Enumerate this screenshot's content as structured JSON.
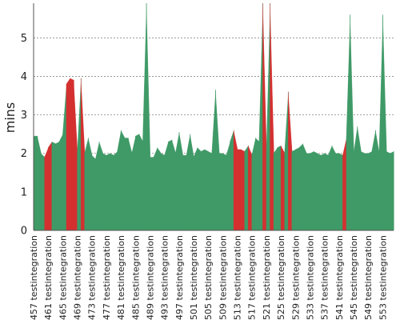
{
  "chart_data": {
    "type": "area",
    "title": "",
    "xlabel": "",
    "ylabel": "mins",
    "ylim": [
      0,
      5.9
    ],
    "yticks": [
      0,
      1,
      2,
      3,
      4,
      5
    ],
    "grid": true,
    "legend": "none",
    "colors": {
      "success": "#3f9a67",
      "failure": "#d43030",
      "axis": "#555555",
      "grid": "#888888"
    },
    "x_labels": [
      "#457 testintegration",
      "#461 testintegration",
      "#465 testintegration",
      "#469 testintegration",
      "#473 testintegration",
      "#477 testintegration",
      "#481 testintegration",
      "#485 testintegration",
      "#489 testintegration",
      "#493 testintegration",
      "#497 testintegration",
      "#501 testintegration",
      "#505 testintegration",
      "#509 testintegration",
      "#513 testintegration",
      "#517 testintegration",
      "#521 testintegration",
      "#525 testintegration",
      "#529 testintegration",
      "#533 testintegration",
      "#537 testintegration",
      "#541 testintegration",
      "#545 testintegration",
      "#549 testintegration",
      "#553 testintegration"
    ],
    "builds": [
      457,
      458,
      459,
      460,
      461,
      462,
      463,
      464,
      465,
      466,
      467,
      468,
      469,
      470,
      471,
      472,
      473,
      474,
      475,
      476,
      477,
      478,
      479,
      480,
      481,
      482,
      483,
      484,
      485,
      486,
      487,
      488,
      489,
      490,
      491,
      492,
      493,
      494,
      495,
      496,
      497,
      498,
      499,
      500,
      501,
      502,
      503,
      504,
      505,
      506,
      507,
      508,
      509,
      510,
      511,
      512,
      513,
      514,
      515,
      516,
      517,
      518,
      519,
      520,
      521,
      522,
      523,
      524,
      525,
      526,
      527,
      528,
      529,
      530,
      531,
      532,
      533,
      534,
      535,
      536,
      537,
      538,
      539,
      540,
      541,
      542,
      543,
      544,
      545,
      546,
      547,
      548,
      549,
      550,
      551,
      552,
      553,
      554,
      555,
      556
    ],
    "values": [
      2.45,
      2.45,
      2.0,
      1.9,
      2.15,
      2.3,
      2.25,
      2.3,
      2.5,
      3.8,
      3.95,
      3.9,
      2.0,
      3.95,
      2.0,
      2.4,
      1.95,
      1.85,
      2.3,
      2.0,
      1.95,
      2.0,
      1.95,
      2.05,
      2.6,
      2.4,
      2.4,
      2.0,
      2.45,
      2.5,
      2.3,
      5.9,
      1.9,
      1.9,
      2.15,
      2.0,
      1.95,
      2.3,
      2.35,
      2.0,
      2.55,
      1.95,
      1.95,
      2.5,
      1.9,
      2.15,
      2.05,
      2.1,
      2.05,
      2.0,
      3.65,
      2.0,
      2.0,
      1.95,
      2.3,
      2.6,
      2.1,
      2.1,
      2.05,
      2.2,
      1.95,
      2.4,
      2.3,
      5.9,
      2.0,
      5.9,
      2.0,
      2.15,
      2.2,
      2.0,
      3.6,
      2.05,
      2.1,
      2.15,
      2.25,
      2.0,
      2.0,
      2.05,
      2.0,
      1.95,
      2.0,
      1.95,
      2.2,
      2.0,
      2.0,
      1.95,
      2.4,
      5.6,
      2.0,
      2.7,
      2.05,
      2.0,
      2.0,
      2.05,
      2.6,
      2.0,
      5.6,
      2.05,
      2.0,
      2.05
    ],
    "status": [
      "ok",
      "ok",
      "ok",
      "fail",
      "fail",
      "ok",
      "ok",
      "ok",
      "ok",
      "fail",
      "fail",
      "fail",
      "ok",
      "fail",
      "ok",
      "ok",
      "ok",
      "ok",
      "ok",
      "ok",
      "ok",
      "ok",
      "ok",
      "ok",
      "ok",
      "ok",
      "ok",
      "ok",
      "ok",
      "ok",
      "ok",
      "ok",
      "ok",
      "ok",
      "ok",
      "ok",
      "ok",
      "ok",
      "ok",
      "ok",
      "ok",
      "ok",
      "ok",
      "ok",
      "ok",
      "ok",
      "ok",
      "ok",
      "ok",
      "ok",
      "ok",
      "ok",
      "ok",
      "ok",
      "ok",
      "fail",
      "fail",
      "fail",
      "ok",
      "fail",
      "ok",
      "ok",
      "ok",
      "fail",
      "ok",
      "fail",
      "ok",
      "ok",
      "fail",
      "ok",
      "fail",
      "ok",
      "ok",
      "ok",
      "ok",
      "ok",
      "ok",
      "ok",
      "ok",
      "ok",
      "ok",
      "ok",
      "ok",
      "ok",
      "ok",
      "fail",
      "ok",
      "ok",
      "ok",
      "ok",
      "ok",
      "ok",
      "ok",
      "ok",
      "ok",
      "ok",
      "ok",
      "ok",
      "ok",
      "ok"
    ]
  }
}
